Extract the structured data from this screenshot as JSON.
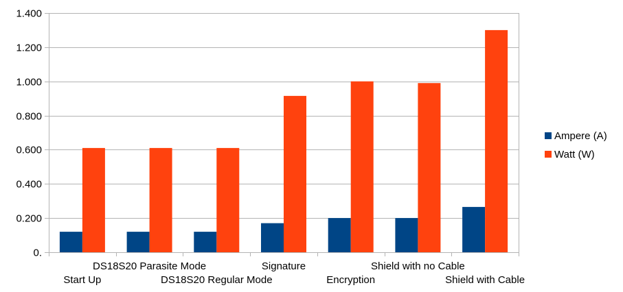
{
  "chart_data": {
    "type": "bar",
    "categories": [
      "Start Up",
      "DS18S20 Parasite Mode",
      "DS18S20 Regular Mode",
      "Signature",
      "Encryption",
      "Shield with no Cable",
      "Shield with Cable"
    ],
    "series": [
      {
        "name": "Ampere (A)",
        "color": "#004586",
        "values": [
          0.12,
          0.12,
          0.12,
          0.17,
          0.2,
          0.2,
          0.265
        ]
      },
      {
        "name": "Watt (W)",
        "color": "#ff420e",
        "values": [
          0.61,
          0.61,
          0.61,
          0.915,
          1.0,
          0.99,
          1.3
        ]
      }
    ],
    "yticks": [
      {
        "value": 0.0,
        "label": "0."
      },
      {
        "value": 0.2,
        "label": "0.200"
      },
      {
        "value": 0.4,
        "label": "0.400"
      },
      {
        "value": 0.6,
        "label": "0.600"
      },
      {
        "value": 0.8,
        "label": "0.800"
      },
      {
        "value": 1.0,
        "label": "1.000"
      },
      {
        "value": 1.2,
        "label": "1.200"
      },
      {
        "value": 1.4,
        "label": "1.400"
      }
    ],
    "ylim": [
      0,
      1.4
    ],
    "grid": true,
    "legend": "right",
    "title": "",
    "xlabel": "",
    "ylabel": ""
  }
}
